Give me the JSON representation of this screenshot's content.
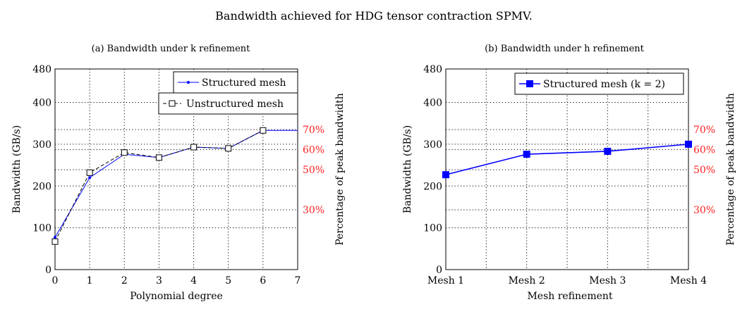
{
  "figure_title": "Bandwidth achieved for HDG tensor contraction SPMV.",
  "colors": {
    "structured": "#0000ff",
    "unstructured": "#000000",
    "percent": "#ff2020"
  },
  "chart_data": [
    {
      "type": "line",
      "title": "(a) Bandwidth under k refinement",
      "xlabel": "Polynomial degree",
      "ylabel": "Bandwidth (GB/s)",
      "ylabel_right": "Percentage of peak bandwidth",
      "xlim": [
        0,
        7
      ],
      "ylim": [
        0,
        480
      ],
      "xticks": [
        "0",
        "1",
        "2",
        "3",
        "4",
        "5",
        "6",
        "7"
      ],
      "yticks": [
        0,
        100,
        200,
        300,
        400,
        480
      ],
      "right_ticks": [
        {
          "label": "70%",
          "value": 335
        },
        {
          "label": "60%",
          "value": 287
        },
        {
          "label": "50%",
          "value": 239
        },
        {
          "label": "30%",
          "value": 143
        }
      ],
      "grid": true,
      "legend_position": "top-right",
      "series": [
        {
          "name": "Structured mesh",
          "style": "solid-dot",
          "x": [
            0,
            1,
            2,
            3,
            4,
            5,
            6,
            7
          ],
          "y": [
            77,
            220,
            276,
            268,
            293,
            290,
            333,
            333
          ]
        },
        {
          "name": "Unstructured mesh",
          "style": "dashed-square",
          "x": [
            0,
            1,
            2,
            3,
            4,
            5,
            6
          ],
          "y": [
            67,
            232,
            280,
            268,
            293,
            290,
            333
          ]
        }
      ]
    },
    {
      "type": "line",
      "title": "(b) Bandwidth under h refinement",
      "xlabel": "Mesh refinement",
      "ylabel": "Bandwidth (GB/s)",
      "ylabel_right": "Percentage of peak bandwidth",
      "categories": [
        "Mesh 1",
        "Mesh 2",
        "Mesh 3",
        "Mesh 4"
      ],
      "ylim": [
        0,
        480
      ],
      "yticks": [
        0,
        100,
        200,
        300,
        400,
        480
      ],
      "right_ticks": [
        {
          "label": "70%",
          "value": 335
        },
        {
          "label": "60%",
          "value": 287
        },
        {
          "label": "50%",
          "value": 239
        },
        {
          "label": "30%",
          "value": 143
        }
      ],
      "grid": true,
      "legend_position": "top-right",
      "series": [
        {
          "name": "Structured mesh (k = 2)",
          "style": "solid-square",
          "y": [
            227,
            276,
            283,
            300
          ]
        }
      ]
    }
  ]
}
